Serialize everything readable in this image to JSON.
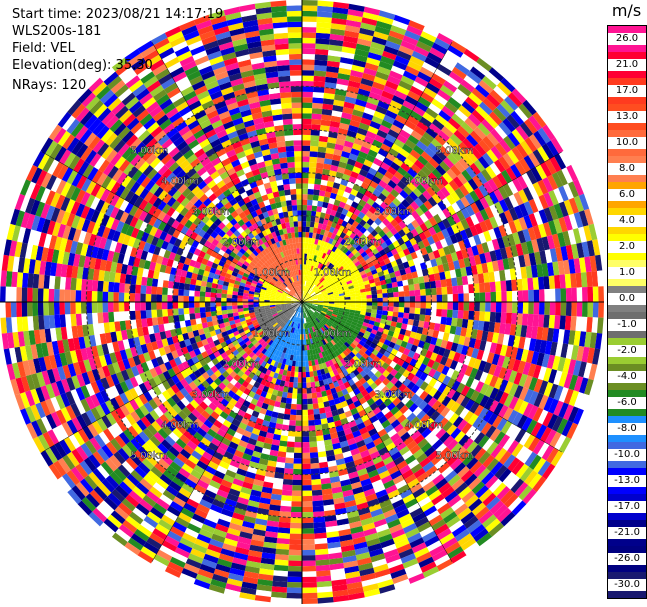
{
  "info": {
    "start_time": "Start time: 2023/08/21 14:17:19",
    "instrument": "WLS200s-181",
    "field": "Field: VEL",
    "elevation": "Elevation(deg): 35.30",
    "nrays": "NRays: 120"
  },
  "chart_data": {
    "type": "heatmap",
    "projection": "polar-ppi",
    "field": "VEL",
    "units": "m/s",
    "n_rays": 120,
    "elevation_deg": 35.3,
    "range_ring_labels": [
      "1.00km",
      "2.00km",
      "3.00km",
      "4.00km",
      "5.00km"
    ],
    "range_ring_km": [
      1,
      2,
      3,
      4,
      5
    ],
    "max_range_km": 7.0,
    "colorbar": {
      "unit_label": "m/s",
      "levels": [
        {
          "label": "26.0",
          "color": "#ff1493"
        },
        {
          "label": "21.0",
          "color": "#ff0033"
        },
        {
          "label": "17.0",
          "color": "#ff3b1f"
        },
        {
          "label": "13.0",
          "color": "#ff4d20"
        },
        {
          "label": "10.0",
          "color": "#ff6a3c"
        },
        {
          "label": "8.0",
          "color": "#ff7f50"
        },
        {
          "label": "6.0",
          "color": "#ffa500"
        },
        {
          "label": "4.0",
          "color": "#ffd700"
        },
        {
          "label": "2.0",
          "color": "#ffff00"
        },
        {
          "label": "1.0",
          "color": "#ffff66"
        },
        {
          "label": "0.0",
          "color": "#808080"
        },
        {
          "label": "-1.0",
          "color": "#6e6e6e"
        },
        {
          "label": "-2.0",
          "color": "#9acd32"
        },
        {
          "label": "-4.0",
          "color": "#6b8e23"
        },
        {
          "label": "-6.0",
          "color": "#228b22"
        },
        {
          "label": "-8.0",
          "color": "#1e90ff"
        },
        {
          "label": "-10.0",
          "color": "#4169e1"
        },
        {
          "label": "-13.0",
          "color": "#0000ff"
        },
        {
          "label": "-17.0",
          "color": "#0000cd"
        },
        {
          "label": "-21.0",
          "color": "#00008b"
        },
        {
          "label": "-26.0",
          "color": "#000080"
        },
        {
          "label": "-30.0",
          "color": "#191970"
        }
      ]
    },
    "near_field_pattern": [
      {
        "azimuth_from_deg": 0,
        "azimuth_to_deg": 100,
        "level_label": "2.0",
        "range_to_km": 1.5
      },
      {
        "azimuth_from_deg": 100,
        "azimuth_to_deg": 175,
        "level_label": "-6.0",
        "range_to_km": 1.5
      },
      {
        "azimuth_from_deg": 175,
        "azimuth_to_deg": 215,
        "level_label": "-8.0",
        "range_to_km": 1.5
      },
      {
        "azimuth_from_deg": 215,
        "azimuth_to_deg": 265,
        "level_label": "-1.0",
        "range_to_km": 1.2
      },
      {
        "azimuth_from_deg": 265,
        "azimuth_to_deg": 300,
        "level_label": "2.0",
        "range_to_km": 1.0
      },
      {
        "azimuth_from_deg": 300,
        "azimuth_to_deg": 360,
        "level_label": "10.0",
        "range_to_km": 1.5
      }
    ],
    "far_field": "noise"
  }
}
